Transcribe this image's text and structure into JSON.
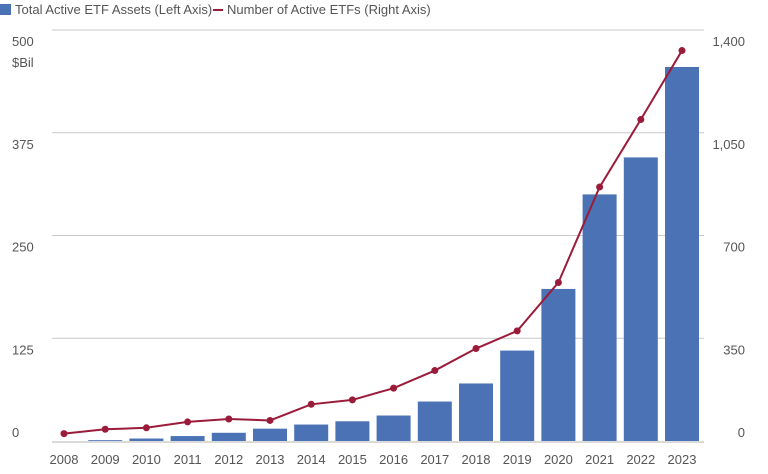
{
  "chart_data": {
    "type": "bar",
    "categories": [
      "2008",
      "2009",
      "2010",
      "2011",
      "2012",
      "2013",
      "2014",
      "2015",
      "2016",
      "2017",
      "2018",
      "2019",
      "2020",
      "2021",
      "2022",
      "2023"
    ],
    "series": [
      {
        "name": "Total Active ETF Assets (Left Axis)",
        "type": "bar",
        "axis": "left",
        "color": "#4a72b4",
        "values": [
          0,
          1,
          3,
          6,
          10,
          15,
          20,
          24,
          31,
          48,
          70,
          110,
          185,
          300,
          345,
          455
        ]
      },
      {
        "name": "Number of Active ETFs (Right Axis)",
        "type": "line",
        "axis": "right",
        "color": "#9b1b3a",
        "values": [
          25,
          40,
          45,
          65,
          75,
          70,
          125,
          140,
          180,
          240,
          315,
          375,
          540,
          865,
          1095,
          1330
        ]
      }
    ],
    "left_axis": {
      "ylim": [
        0,
        500
      ],
      "ticks": [
        "0",
        "125",
        "250",
        "375",
        "500"
      ],
      "unit_label": "$Bil"
    },
    "right_axis": {
      "ylim": [
        0,
        1400
      ],
      "ticks": [
        "0",
        "350",
        "700",
        "1,050",
        "1,400"
      ]
    },
    "grid": true,
    "legend_position": "top-left"
  }
}
